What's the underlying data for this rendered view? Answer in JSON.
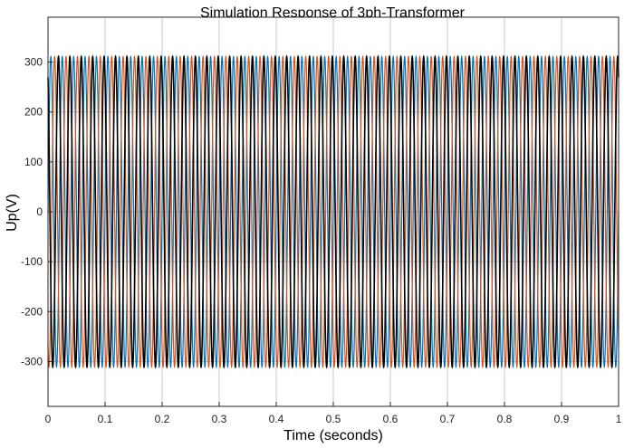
{
  "chart_data": {
    "type": "line",
    "title": "Simulation Response of 3ph-Transformer",
    "xlabel": "Time (seconds)",
    "ylabel": "Up(V)",
    "xlim": [
      0,
      1
    ],
    "ylim": [
      -390,
      390
    ],
    "xticks": [
      0,
      0.1,
      0.2,
      0.3,
      0.4,
      0.5,
      0.6,
      0.7,
      0.8,
      0.9,
      1
    ],
    "yticks": [
      -300,
      -200,
      -100,
      0,
      100,
      200,
      300
    ],
    "xtick_labels": [
      "0",
      "0.1",
      "0.2",
      "0.3",
      "0.4",
      "0.5",
      "0.6",
      "0.7",
      "0.8",
      "0.9",
      "1"
    ],
    "ytick_labels": [
      "-300",
      "-200",
      "-100",
      "0",
      "100",
      "200",
      "300"
    ],
    "grid": true,
    "series": [
      {
        "amplitude": 311,
        "frequency_hz": 50,
        "phase_deg": 0,
        "color": "#0072BD"
      },
      {
        "amplitude": 311,
        "frequency_hz": 50,
        "phase_deg": -120,
        "color": "#D95319"
      },
      {
        "amplitude": 311,
        "frequency_hz": 50,
        "phase_deg": 120,
        "color": "#000000"
      }
    ]
  }
}
